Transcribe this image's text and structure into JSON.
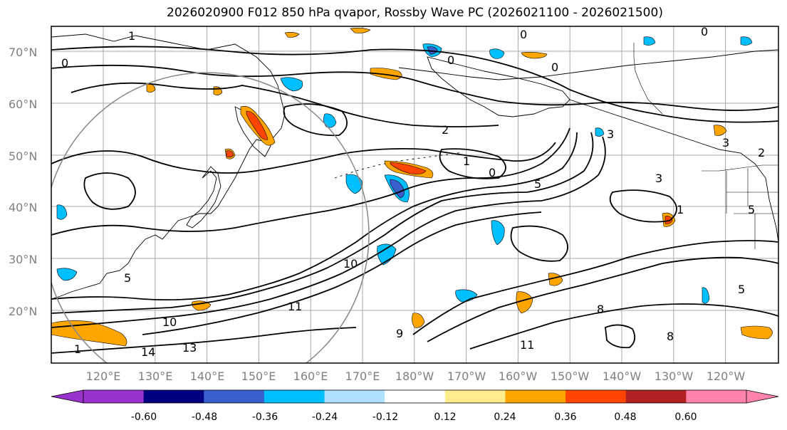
{
  "title": "2026020900 F012 850 hPa qvapor, Rossby Wave PC (2026021100 - 2026021500)",
  "latitude_labels": [
    "70°N",
    "60°N",
    "50°N",
    "40°N",
    "30°N",
    "20°N"
  ],
  "longitude_labels": [
    "120°E",
    "130°E",
    "140°E",
    "150°E",
    "160°E",
    "170°E",
    "180°W",
    "170°W",
    "160°W",
    "150°W",
    "140°W",
    "130°W",
    "120°W"
  ],
  "contour_labels": [
    "1",
    "0",
    "0",
    "0",
    "0",
    "0",
    "2",
    "1",
    "0",
    "3",
    "3",
    "3",
    "2",
    "5",
    "1",
    "5",
    "5",
    "10",
    "11",
    "8",
    "9",
    "11",
    "14",
    "13",
    "10",
    "8",
    "5",
    "1"
  ],
  "colorbar": {
    "colors": [
      "#9a32cd",
      "#000080",
      "#3a5fcd",
      "#00bfff",
      "#b0e2ff",
      "#ffffff",
      "#ffec8b",
      "#ffa500",
      "#ff4500",
      "#b22222",
      "#ff82ab"
    ],
    "extend_low_color": "#9a32cd",
    "extend_high_color": "#ff82ab",
    "tick_labels": [
      "-0.60",
      "-0.48",
      "-0.36",
      "-0.24",
      "-0.12",
      "0.12",
      "0.24",
      "0.36",
      "0.48",
      "0.60"
    ]
  }
}
